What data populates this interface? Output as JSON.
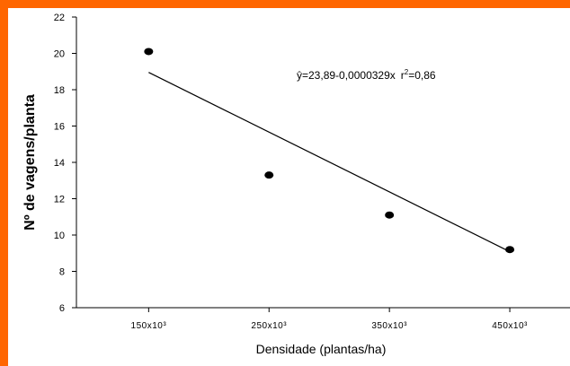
{
  "frame": {
    "accent_color": "#ff6600"
  },
  "chart_data": {
    "type": "scatter",
    "title": "",
    "xlabel": "Densidade (plantas/ha)",
    "ylabel": "Nº de vagens/planta",
    "x_categories": [
      "150x10³",
      "250x10³",
      "350x10³",
      "450x10³"
    ],
    "x_values": [
      150000,
      250000,
      350000,
      450000
    ],
    "xlim": [
      90000,
      500000
    ],
    "ylim": [
      6,
      22
    ],
    "yticks": [
      6,
      8,
      10,
      12,
      14,
      16,
      18,
      20,
      22
    ],
    "series": [
      {
        "points": [
          {
            "x": 150000,
            "y": 20.1
          },
          {
            "x": 250000,
            "y": 13.3
          },
          {
            "x": 350000,
            "y": 11.1
          },
          {
            "x": 450000,
            "y": 9.2
          }
        ]
      }
    ],
    "regression": {
      "intercept": 23.89,
      "slope": -3.29e-05,
      "x_range": [
        150000,
        450000
      ],
      "equation_text": "ŷ=23,89-0,0000329x",
      "r2_prefix": "r",
      "r2_sup": "2",
      "r2_value": "=0,86"
    },
    "grid": false,
    "legend": "none",
    "colors": {
      "points": "#000000",
      "line": "#000000"
    }
  }
}
